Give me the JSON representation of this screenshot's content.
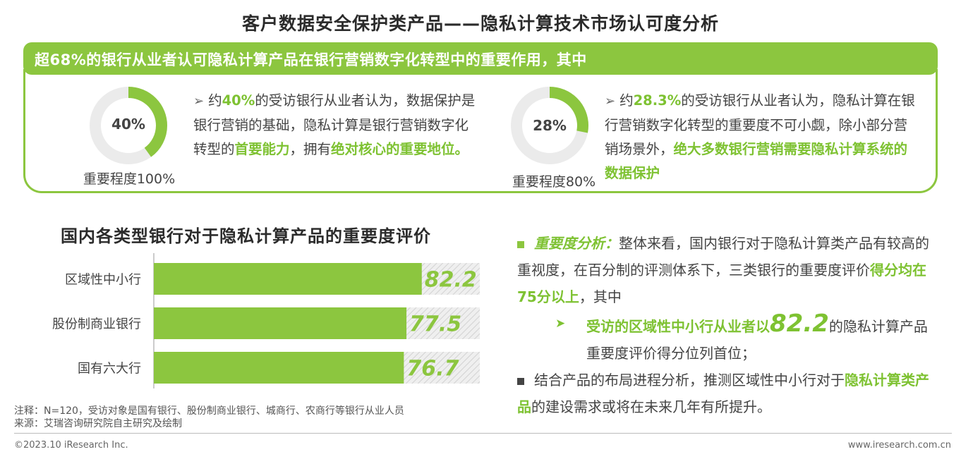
{
  "title": "客户数据安全保护类产品——隐私计算技术市场认可度分析",
  "banner": "超68%的银行从业者认可隐私计算产品在银行营销数字化转型中的重要作用，其中",
  "colors": {
    "accent": "#8cc63f",
    "donut_bg": "#ebebeb",
    "bar_bg": "#e4e4e4"
  },
  "donut1": {
    "value": 40,
    "label": "40%",
    "caption": "重要程度100%",
    "text": [
      {
        "t": "约"
      },
      {
        "t": "40%",
        "hl": true
      },
      {
        "t": "的受访银行从业者认为，数据保护是银行营销的基础，隐私计算是银行营销数字化转型的"
      },
      {
        "t": "首要能力",
        "hl": true
      },
      {
        "t": "，拥有"
      },
      {
        "t": "绝对核心的重要地位。",
        "hl": true
      }
    ]
  },
  "donut2": {
    "value": 28,
    "label": "28%",
    "caption": "重要程度80%",
    "text": [
      {
        "t": "约"
      },
      {
        "t": "28.3%",
        "hl": true
      },
      {
        "t": "的受访银行从业者认为，隐私计算在银行营销数字化转型的重要度不可小觑，除小部分营销场景外，"
      },
      {
        "t": "绝大多数银行营销需要隐私计算系统的数据保护",
        "hl": true
      }
    ]
  },
  "chart_data": {
    "type": "bar",
    "title": "国内各类型银行对于隐私计算产品的重要度评价",
    "categories": [
      "区域性中小行",
      "股份制商业银行",
      "国有六大行"
    ],
    "values": [
      82.2,
      77.5,
      76.7
    ],
    "value_labels": [
      "82.2",
      "77.5",
      "76.7"
    ],
    "xlim": [
      0,
      100
    ],
    "orientation": "horizontal"
  },
  "analysis": {
    "heading": "重要度分析：",
    "p1_a": "整体来看，国内银行对于隐私计算类产品有较高的重视度，在百分制的评测体系下，三类银行的重要度评价",
    "p1_hl": "得分均在75分以上",
    "p1_b": "，其中",
    "sub_hl": "受访的区域性中小行从业者以",
    "sub_num": "82.2",
    "sub_rest": "的隐私计算产品重要度评价得分位列首位；",
    "p2_a": "结合产品的布局进程分析，推测区域性中小行对于",
    "p2_hl": "隐私计算类产品",
    "p2_b": "的建设需求或将在未来几年有所提升。"
  },
  "notes": {
    "note": "注释：N=120，受访对象是国有银行、股份制商业银行、城商行、农商行等银行从业人员",
    "source": "来源：艾瑞咨询研究院自主研究及绘制"
  },
  "footer": {
    "left": "©2023.10 iResearch Inc.",
    "right": "www.iresearch.com.cn"
  }
}
